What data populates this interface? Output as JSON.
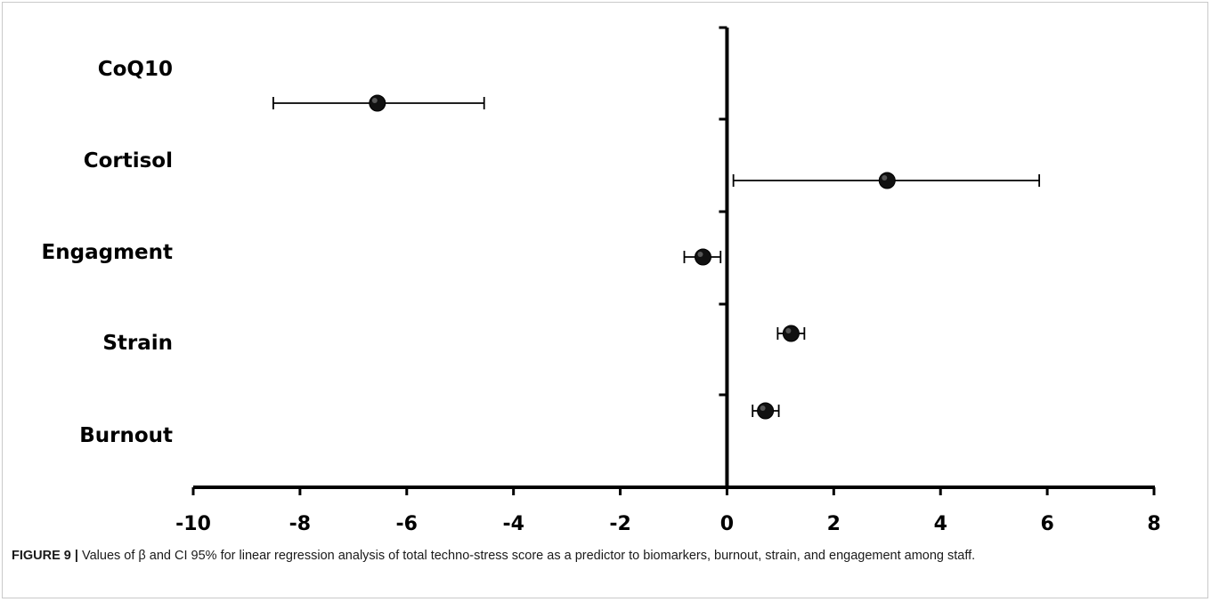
{
  "chart_data": {
    "type": "scatter",
    "categories": [
      "CoQ10",
      "Cortisol",
      "Engagment",
      "Strain",
      "Burnout"
    ],
    "points": [
      {
        "category": "CoQ10",
        "value": -6.55,
        "ci_low": -8.5,
        "ci_high": -4.55
      },
      {
        "category": "Cortisol",
        "value": 3.0,
        "ci_low": 0.12,
        "ci_high": 5.85
      },
      {
        "category": "Engagment",
        "value": -0.45,
        "ci_low": -0.8,
        "ci_high": -0.12
      },
      {
        "category": "Strain",
        "value": 1.2,
        "ci_low": 0.95,
        "ci_high": 1.45
      },
      {
        "category": "Burnout",
        "value": 0.72,
        "ci_low": 0.48,
        "ci_high": 0.97
      }
    ],
    "xlim": [
      -10,
      8
    ],
    "xticks": [
      -10,
      -8,
      -6,
      -4,
      -2,
      0,
      2,
      4,
      6,
      8
    ],
    "title": "",
    "xlabel": "",
    "ylabel": "",
    "grid": false,
    "legend": "none"
  },
  "caption": {
    "label": "FIGURE 9 |",
    "text": " Values of β and CI 95% for linear regression analysis of total techno-stress score as a predictor to biomarkers, burnout, strain, and engagement among staff."
  }
}
